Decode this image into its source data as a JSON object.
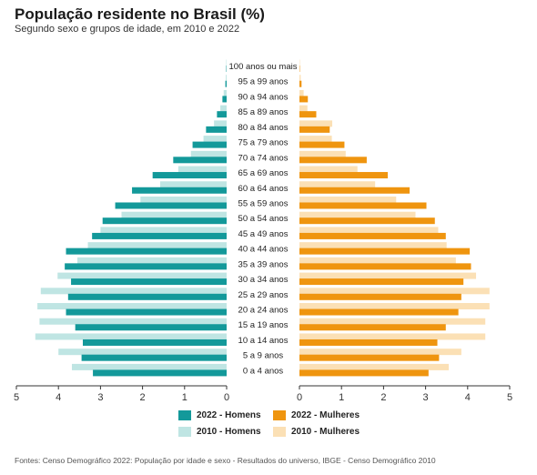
{
  "chart_data": {
    "type": "bar",
    "title": "População residente no Brasil (%)",
    "subtitle": "Segundo sexo e grupos de idade, em 2010 e 2022",
    "categories": [
      "100 anos ou mais",
      "95 a 99 anos",
      "90 a 94 anos",
      "85 a 89 anos",
      "80 a 84 anos",
      "75 a 79 anos",
      "70 a 74 anos",
      "65 a 69 anos",
      "60 a 64 anos",
      "55 a 59 anos",
      "50 a 54 anos",
      "45 a 49 anos",
      "40 a 44 anos",
      "35 a 39 anos",
      "30 a 34 anos",
      "25 a 29 anos",
      "20 a 24 anos",
      "15 a 19 anos",
      "10 a 14 anos",
      "5 a 9 anos",
      "0 a 4 anos"
    ],
    "series": [
      {
        "name": "2022 - Homens",
        "side": "left",
        "values": [
          0.01,
          0.03,
          0.1,
          0.23,
          0.49,
          0.81,
          1.27,
          1.76,
          2.25,
          2.65,
          2.95,
          3.2,
          3.82,
          3.85,
          3.7,
          3.77,
          3.82,
          3.6,
          3.42,
          3.45,
          3.18
        ]
      },
      {
        "name": "2010 - Homens",
        "side": "left",
        "values": [
          0.01,
          0.02,
          0.07,
          0.15,
          0.3,
          0.55,
          0.85,
          1.15,
          1.58,
          2.05,
          2.5,
          3.0,
          3.3,
          3.55,
          4.02,
          4.42,
          4.5,
          4.45,
          4.55,
          4.0,
          3.68
        ]
      },
      {
        "name": "2022 - Mulheres",
        "side": "right",
        "values": [
          0.01,
          0.05,
          0.2,
          0.4,
          0.72,
          1.07,
          1.6,
          2.1,
          2.62,
          3.02,
          3.22,
          3.48,
          4.05,
          4.08,
          3.9,
          3.85,
          3.78,
          3.48,
          3.28,
          3.32,
          3.07
        ]
      },
      {
        "name": "2010 - Mulheres",
        "side": "right",
        "values": [
          0.01,
          0.03,
          0.1,
          0.19,
          0.78,
          0.77,
          1.1,
          1.38,
          1.8,
          2.3,
          2.76,
          3.3,
          3.5,
          3.72,
          4.2,
          4.52,
          4.52,
          4.42,
          4.42,
          3.85,
          3.55
        ]
      }
    ],
    "xlim": [
      0,
      5
    ],
    "x_ticks_left": [
      "5",
      "4",
      "3",
      "2",
      "1",
      "0"
    ],
    "x_ticks_right": [
      "0",
      "1",
      "2",
      "3",
      "4",
      "5"
    ],
    "legend_position": "bottom",
    "grid": false
  },
  "colors": {
    "homens_2022": "#13999a",
    "homens_2010": "#bfe5e3",
    "mulheres_2022": "#ef950f",
    "mulheres_2010": "#fbe0b5",
    "axis": "#333333"
  },
  "source": "Fontes: Censo Demográfico 2022: População por idade e sexo - Resultados do universo, IBGE - Censo Demográfico 2010"
}
